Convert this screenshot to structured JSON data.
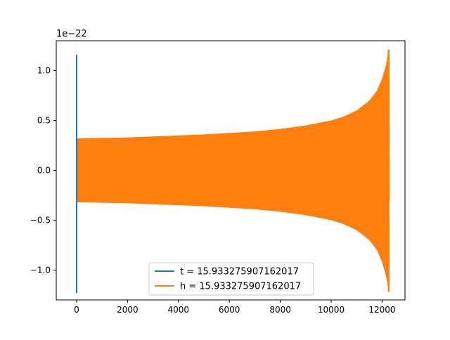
{
  "chart_data": {
    "type": "line",
    "title": "",
    "xlabel": "",
    "ylabel": "",
    "y_offset_label": "1e−22",
    "xlim": [
      -800,
      12900
    ],
    "ylim": [
      -1.3,
      1.3
    ],
    "x_ticks": [
      {
        "value": 0,
        "label": "0"
      },
      {
        "value": 2000,
        "label": "2000"
      },
      {
        "value": 4000,
        "label": "4000"
      },
      {
        "value": 6000,
        "label": "6000"
      },
      {
        "value": 8000,
        "label": "8000"
      },
      {
        "value": 10000,
        "label": "10000"
      },
      {
        "value": 12000,
        "label": "12000"
      }
    ],
    "y_ticks": [
      {
        "value": 1.0,
        "label": "1.0"
      },
      {
        "value": 0.5,
        "label": "0.5"
      },
      {
        "value": 0.0,
        "label": "0.0"
      },
      {
        "value": -0.5,
        "label": "−0.5"
      },
      {
        "value": -1.0,
        "label": "−1.0"
      }
    ],
    "grid": false,
    "legend_position": "lower center",
    "series": [
      {
        "name": "t = 15.933275907162017",
        "color": "#1f77b4",
        "points": [
          [
            0,
            1.16
          ],
          [
            0,
            -1.23
          ],
          [
            0,
            0.41
          ],
          [
            0,
            -0.3
          ]
        ]
      },
      {
        "name": "h = 15.933275907162017",
        "color": "#ff7f0e",
        "envelope": [
          [
            0,
            0.32
          ],
          [
            1000,
            0.325
          ],
          [
            2000,
            0.33
          ],
          [
            3000,
            0.34
          ],
          [
            4000,
            0.35
          ],
          [
            5000,
            0.36
          ],
          [
            6000,
            0.375
          ],
          [
            7000,
            0.39
          ],
          [
            8000,
            0.415
          ],
          [
            9000,
            0.45
          ],
          [
            10000,
            0.5
          ],
          [
            10500,
            0.54
          ],
          [
            11000,
            0.6
          ],
          [
            11500,
            0.7
          ],
          [
            11800,
            0.8
          ],
          [
            12000,
            0.92
          ],
          [
            12150,
            1.05
          ],
          [
            12260,
            1.21
          ],
          [
            12280,
            1.21
          ]
        ]
      }
    ]
  }
}
